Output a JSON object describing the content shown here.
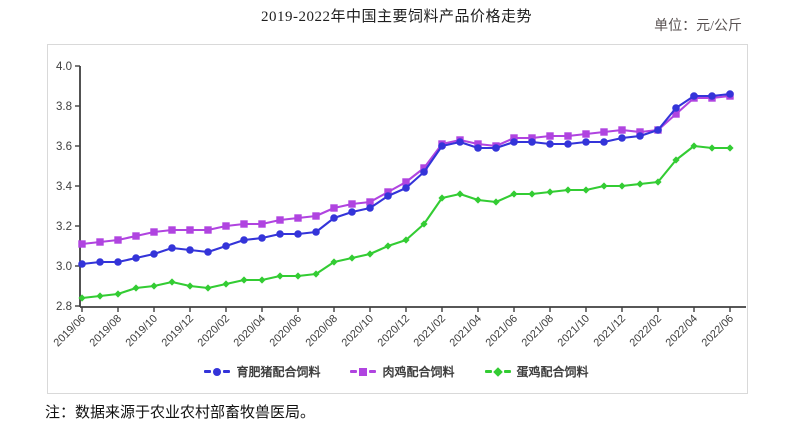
{
  "title": "2019-2022年中国主要饲料产品价格走势",
  "unit_label": "单位：元/公斤",
  "note": "注：数据来源于农业农村部畜牧兽医局。",
  "chart_data": {
    "type": "line",
    "title": "2019-2022年中国主要饲料产品价格走势",
    "unit": "元/公斤",
    "x": [
      "2019/06",
      "2019/07",
      "2019/08",
      "2019/09",
      "2019/10",
      "2019/11",
      "2019/12",
      "2020/01",
      "2020/02",
      "2020/03",
      "2020/04",
      "2020/05",
      "2020/06",
      "2020/07",
      "2020/08",
      "2020/09",
      "2020/10",
      "2020/11",
      "2020/12",
      "2021/01",
      "2021/02",
      "2021/03",
      "2021/04",
      "2021/05",
      "2021/06",
      "2021/07",
      "2021/08",
      "2021/09",
      "2021/10",
      "2021/11",
      "2021/12",
      "2022/01",
      "2022/02",
      "2022/03",
      "2022/04",
      "2022/05",
      "2022/06"
    ],
    "x_tick_labels": [
      "2019/06",
      "2019/08",
      "2019/10",
      "2019/12",
      "2020/02",
      "2020/04",
      "2020/06",
      "2020/08",
      "2020/10",
      "2020/12",
      "2021/02",
      "2021/04",
      "2021/06",
      "2021/08",
      "2021/10",
      "2021/12",
      "2022/02",
      "2022/04",
      "2022/06"
    ],
    "ylim": [
      2.8,
      4.0
    ],
    "yticks": [
      2.8,
      3.0,
      3.2,
      3.4,
      3.6,
      3.8,
      4.0
    ],
    "grid": false,
    "legend_position": "bottom",
    "series": [
      {
        "key": "fattening-pig-feed",
        "name": "育肥猪配合饲料",
        "color": "#3434d9",
        "marker": "circle",
        "values": [
          3.01,
          3.02,
          3.02,
          3.04,
          3.06,
          3.09,
          3.08,
          3.07,
          3.1,
          3.13,
          3.14,
          3.16,
          3.16,
          3.17,
          3.24,
          3.27,
          3.29,
          3.35,
          3.39,
          3.47,
          3.6,
          3.62,
          3.59,
          3.59,
          3.62,
          3.62,
          3.61,
          3.61,
          3.62,
          3.62,
          3.64,
          3.65,
          3.68,
          3.79,
          3.85,
          3.85,
          3.86
        ]
      },
      {
        "key": "broiler-feed",
        "name": "肉鸡配合饲料",
        "color": "#b044e0",
        "marker": "square",
        "values": [
          3.11,
          3.12,
          3.13,
          3.15,
          3.17,
          3.18,
          3.18,
          3.18,
          3.2,
          3.21,
          3.21,
          3.23,
          3.24,
          3.25,
          3.29,
          3.31,
          3.32,
          3.37,
          3.42,
          3.49,
          3.61,
          3.63,
          3.61,
          3.6,
          3.64,
          3.64,
          3.65,
          3.65,
          3.66,
          3.67,
          3.68,
          3.67,
          3.68,
          3.76,
          3.84,
          3.84,
          3.85
        ]
      },
      {
        "key": "layer-feed",
        "name": "蛋鸡配合饲料",
        "color": "#33cc33",
        "marker": "diamond",
        "values": [
          2.84,
          2.85,
          2.86,
          2.89,
          2.9,
          2.92,
          2.9,
          2.89,
          2.91,
          2.93,
          2.93,
          2.95,
          2.95,
          2.96,
          3.02,
          3.04,
          3.06,
          3.1,
          3.13,
          3.21,
          3.34,
          3.36,
          3.33,
          3.32,
          3.36,
          3.36,
          3.37,
          3.38,
          3.38,
          3.4,
          3.4,
          3.41,
          3.42,
          3.53,
          3.6,
          3.59,
          3.59
        ]
      }
    ]
  }
}
